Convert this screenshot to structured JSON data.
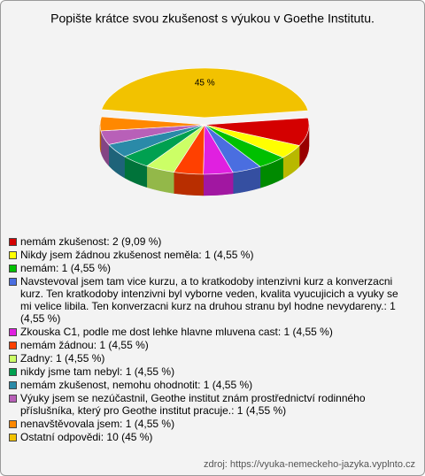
{
  "chart_data": {
    "type": "pie",
    "title": "Popište krátce svou zkušenost s výukou v Goethe Institutu.",
    "categories": [
      "nemám zkušenost: 2 (9,09 %)",
      "Nikdy jsem žádnou zkušenost neměla: 1 (4,55 %)",
      "nemám: 1 (4,55 %)",
      "Navstevoval jsem tam vice kurzu, a to kratkodoby intenzivni kurz a konverzacni kurz. Ten kratkodoby intenzivni byl vyborne veden, kvalita vyucujicich a vyuky se mi velice libila. Ten konverzacni kurz na druhou stranu byl hodne nevydareny.: 1 (4,55 %)",
      "Zkouska C1, podle me dost lehke hlavne mluvena cast: 1 (4,55 %)",
      "nemám žádnou: 1 (4,55 %)",
      "Zadny: 1 (4,55 %)",
      "nikdy jsme tam nebyl: 1 (4,55 %)",
      "nemám zkušenost, nemohu ohodnotit: 1 (4,55 %)",
      "Výuky jsem se nezúčastnil, Geothe institut znám prostřednictví rodinného příslušníka, který pro Geothe institut pracuje.: 1 (4,55 %)",
      "nenavštěvovala jsem: 1 (4,55 %)",
      "Ostatní odpovědi: 10 (45 %)"
    ],
    "values": [
      9.09,
      4.55,
      4.55,
      4.55,
      4.55,
      4.55,
      4.55,
      4.55,
      4.55,
      4.55,
      4.55,
      45
    ],
    "value_labels": [
      null,
      null,
      null,
      null,
      null,
      null,
      null,
      null,
      null,
      null,
      null,
      "45 %"
    ],
    "colors": [
      "#d40000",
      "#ffff00",
      "#00c000",
      "#4a6ee0",
      "#e020e0",
      "#ff4000",
      "#ccff66",
      "#00a050",
      "#2a8aa8",
      "#b860b8",
      "#ff8800",
      "#f2c200"
    ],
    "source": "zdroj: https://vyuka-nemeckeho-jazyka.vyplnto.cz"
  }
}
